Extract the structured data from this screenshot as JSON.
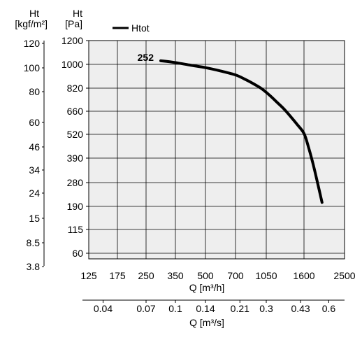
{
  "chart_data": {
    "type": "line",
    "y_axis_outer": {
      "label_line1": "Ht",
      "label_line2": "[kgf/m²]",
      "ticks": [
        "120",
        "100",
        "80",
        "60",
        "46",
        "34",
        "24",
        "15",
        "8.5",
        "3.8"
      ]
    },
    "y_axis_inner": {
      "label_line1": "Ht",
      "label_line2": "[Pa]",
      "ticks": [
        "1200",
        "1000",
        "820",
        "660",
        "520",
        "390",
        "280",
        "190",
        "115",
        "60"
      ]
    },
    "x_axis_primary": {
      "label": "Q [m³/h]",
      "ticks": [
        "125",
        "175",
        "250",
        "350",
        "500",
        "700",
        "1050",
        "1600",
        "2500"
      ]
    },
    "x_axis_secondary": {
      "label": "Q [m³/s]",
      "ticks": [
        "0.04",
        "0.07",
        "0.1",
        "0.14",
        "0.21",
        "0.3",
        "0.43",
        "0.6"
      ],
      "tick_positions_m3h": [
        150,
        250,
        350,
        500,
        750,
        1050,
        1550,
        2150
      ]
    },
    "legend": {
      "label": "Htot",
      "position": "top-left",
      "color": "#000000"
    },
    "series": [
      {
        "name": "Htot",
        "model_label": "252",
        "color": "#000000",
        "x": [
          300,
          350,
          420,
          500,
          600,
          700,
          800,
          900,
          1000,
          1100,
          1200,
          1300,
          1400,
          1500,
          1600,
          1700,
          1800,
          1900,
          2000
        ],
        "y": [
          1030,
          1015,
          995,
          975,
          950,
          920,
          890,
          855,
          815,
          770,
          725,
          680,
          630,
          580,
          525,
          450,
          365,
          280,
          205
        ]
      }
    ],
    "plot_background": "#eeeeee",
    "grid": true
  }
}
